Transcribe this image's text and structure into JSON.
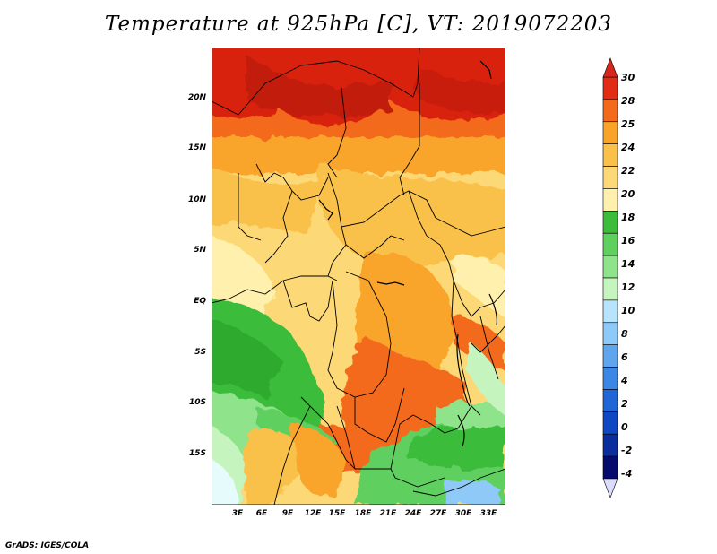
{
  "title": "Temperature at 925hPa [C], VT: 2019072203",
  "credit": "GrADS: IGES/COLA",
  "y_axis": {
    "ticks": [
      "20N",
      "15N",
      "10N",
      "5N",
      "EQ",
      "5S",
      "10S",
      "15S"
    ]
  },
  "x_axis": {
    "ticks": [
      "3E",
      "6E",
      "9E",
      "12E",
      "15E",
      "18E",
      "21E",
      "24E",
      "27E",
      "30E",
      "33E"
    ]
  },
  "colorbar": {
    "labels": [
      "30",
      "28",
      "25",
      "24",
      "22",
      "20",
      "18",
      "16",
      "14",
      "12",
      "10",
      "8",
      "6",
      "4",
      "2",
      "0",
      "-2",
      "-4"
    ],
    "top_arrow_color": "#d7261e",
    "bottom_arrow_color": "#dcdcff",
    "colors": [
      "#e22d14",
      "#f36a1c",
      "#f9a429",
      "#f9c14a",
      "#fcd876",
      "#fff1ad",
      "#3bbc3b",
      "#5ed05e",
      "#8fe38a",
      "#c6f4be",
      "#b7e4fc",
      "#8fc9f7",
      "#5fa5ee",
      "#3c86e4",
      "#2166d6",
      "#0f48c2",
      "#0a2e9c",
      "#050c6e"
    ]
  }
}
